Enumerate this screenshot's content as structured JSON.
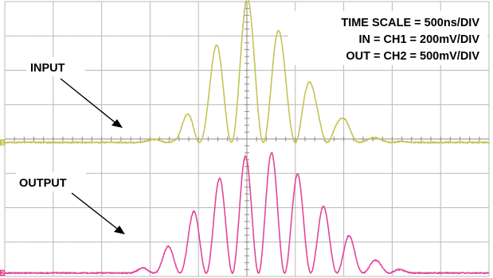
{
  "chart_data": {
    "type": "line",
    "title": "",
    "xlabel": "",
    "ylabel": "",
    "grid": true,
    "divisions": {
      "x": 10,
      "y": 8
    },
    "settings_text": [
      "TIME SCALE = 500ns/DIV",
      "IN = CH1 = 200mV/DIV",
      "OUT = CH2 = 500mV/DIV"
    ],
    "annotations": [
      {
        "label": "INPUT",
        "points_to": "CH1"
      },
      {
        "label": "OUTPUT",
        "points_to": "CH2"
      }
    ],
    "series": [
      {
        "name": "CH1",
        "ground_marker": "1",
        "baseline_div": 3.9,
        "x_div": [
          0.5,
          1.5,
          2.5,
          3.5,
          4.0,
          4.5,
          5.0,
          5.5,
          6.0,
          6.5,
          7.0,
          7.5,
          8.5,
          9.5
        ],
        "y_div": [
          0.0,
          0.0,
          0.0,
          0.15,
          1.6,
          3.1,
          4.2,
          3.5,
          2.5,
          1.4,
          0.7,
          0.15,
          0.0,
          0.0
        ]
      },
      {
        "name": "CH2",
        "ground_marker": "2",
        "baseline_div": 0.1,
        "x_div": [
          0.5,
          1.5,
          2.5,
          3.0,
          3.5,
          4.0,
          4.5,
          5.0,
          5.5,
          6.0,
          6.5,
          7.0,
          7.5,
          8.5,
          9.5
        ],
        "y_div": [
          0.0,
          0.0,
          0.0,
          0.2,
          0.9,
          1.9,
          2.8,
          3.4,
          3.5,
          2.9,
          2.0,
          1.2,
          0.4,
          0.0,
          0.0
        ]
      }
    ]
  },
  "colors": {
    "ch1": "#c3c455",
    "ch2": "#e2479a",
    "grid": "#b8b8b8",
    "text": "#000000"
  }
}
